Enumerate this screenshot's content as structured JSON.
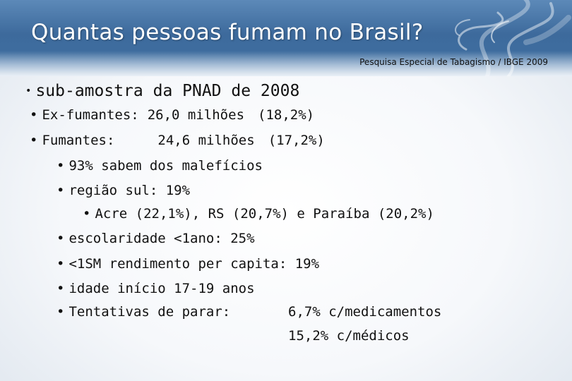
{
  "title": "Quantas pessoas fumam no Brasil?",
  "subtitle": "Pesquisa Especial de Tabagismo / IBGE 2009",
  "bullet_char": "•",
  "items": [
    {
      "text": "sub-amostra da PNAD de 2008"
    },
    {
      "label": "Ex-fumantes:",
      "value": "26,0 milhões",
      "pct": "(18,2%)"
    },
    {
      "label": "Fumantes:",
      "value": "24,6 milhões",
      "pct": "(17,2%)"
    },
    {
      "text": "93% sabem dos malefícios"
    },
    {
      "text": "região sul: 19%"
    },
    {
      "text": "Acre (22,1%), RS (20,7%) e Paraíba (20,2%)"
    },
    {
      "text": "escolaridade <1ano: 25%"
    },
    {
      "text": "<1SM rendimento per capita: 19%"
    },
    {
      "text": "idade início 17-19 anos"
    },
    {
      "label": "Tentativas de parar:",
      "value": "6,7% c/medicamentos"
    },
    {
      "value": "15,2% c/médicos"
    }
  ]
}
